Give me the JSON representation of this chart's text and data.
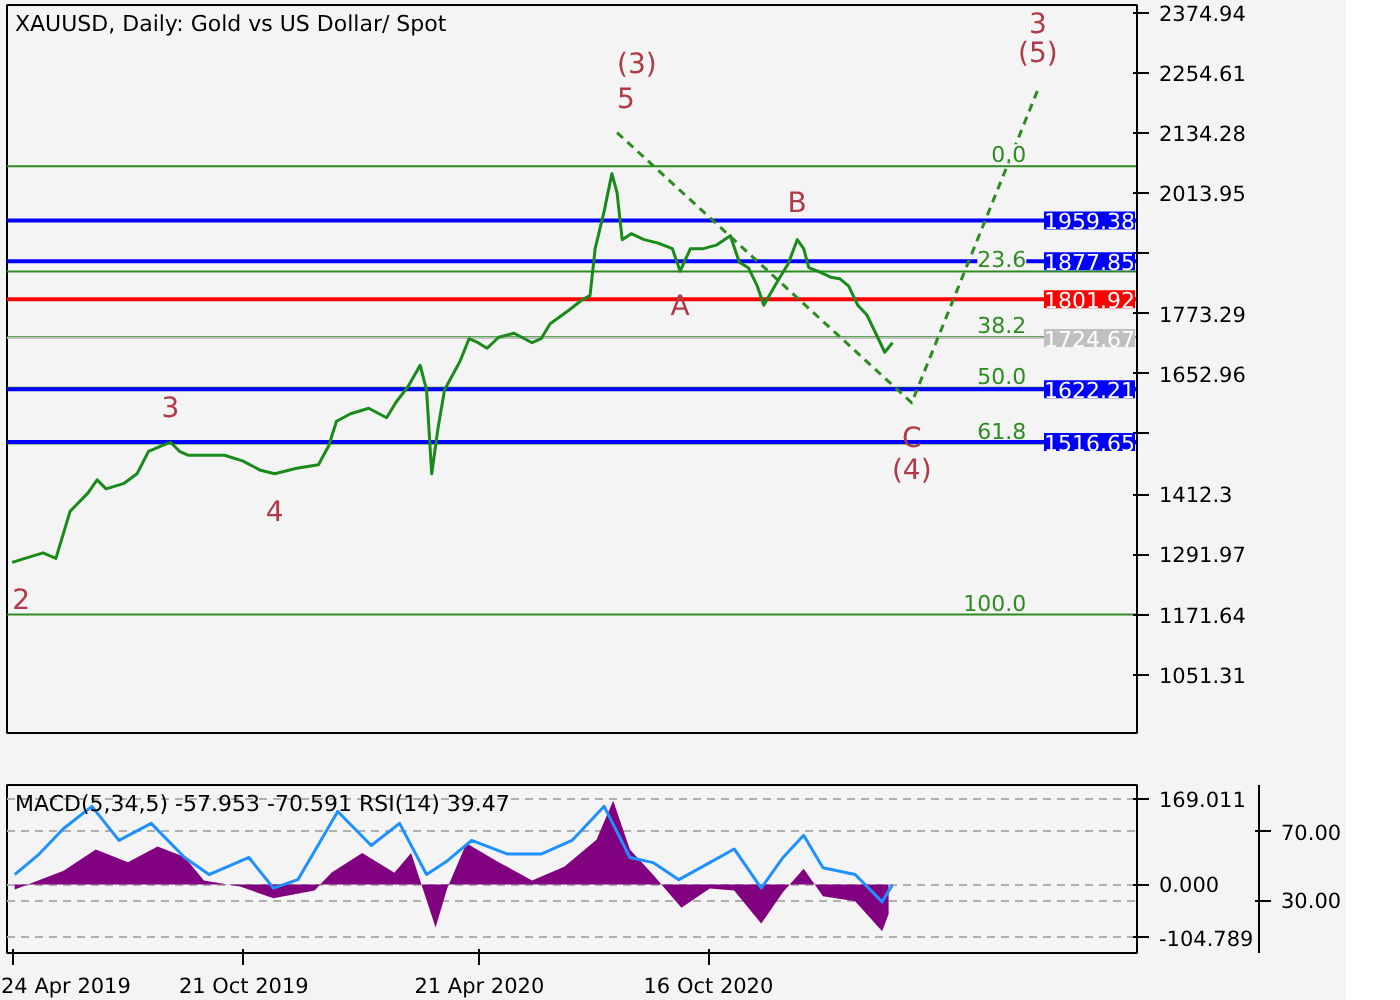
{
  "chart_data": [
    {
      "type": "line",
      "title": "XAUUSD, Daily:  Gold vs US Dollar/ Spot",
      "xlim": [
        "2019-04-20",
        "2021-09-14"
      ],
      "xticks": [
        {
          "value": "2019-04-24",
          "label": null
        },
        {
          "value": "2019-10-21",
          "label": null
        },
        {
          "value": "2020-04-21",
          "label": null
        },
        {
          "value": "2020-10-16",
          "label": null
        }
      ],
      "ylim": [
        935,
        2390
      ],
      "yticks": [
        2374.94,
        2254.61,
        2134.28,
        2013.95,
        {
          "value": 1893.62,
          "label": null
        },
        1773.29,
        1652.96,
        {
          "value": 1532.63,
          "label": null
        },
        1412.3,
        1291.97,
        1171.64,
        1051.31
      ],
      "tick_labels": "y",
      "series": [
        {
          "color": "#1a8a1a",
          "x": [
            "2019-04-24",
            "2019-05-04",
            "2019-05-18",
            "2019-05-28",
            "2019-06-08",
            "2019-06-22",
            "2019-06-29",
            "2019-07-06",
            "2019-07-20",
            "2019-07-30",
            "2019-08-08",
            "2019-08-18",
            "2019-08-25",
            "2019-09-01",
            "2019-09-08",
            "2019-09-22",
            "2019-10-06",
            "2019-10-20",
            "2019-11-03",
            "2019-11-14",
            "2019-12-01",
            "2019-12-18",
            "2019-12-26",
            "2020-01-01",
            "2020-01-12",
            "2020-01-26",
            "2020-02-09",
            "2020-02-16",
            "2020-02-26",
            "2020-03-06",
            "2020-03-11",
            "2020-03-15",
            "2020-03-20",
            "2020-03-25",
            "2020-03-29",
            "2020-04-06",
            "2020-04-13",
            "2020-04-20",
            "2020-04-27",
            "2020-05-06",
            "2020-05-18",
            "2020-06-01",
            "2020-06-08",
            "2020-06-15",
            "2020-06-29",
            "2020-07-10",
            "2020-07-16",
            "2020-07-20",
            "2020-07-27",
            "2020-08-02",
            "2020-08-06",
            "2020-08-10",
            "2020-08-17",
            "2020-08-27",
            "2020-09-07",
            "2020-09-18",
            "2020-09-24",
            "2020-10-02",
            "2020-10-12",
            "2020-10-22",
            "2020-11-02",
            "2020-11-09",
            "2020-11-16",
            "2020-11-23",
            "2020-11-28",
            "2020-12-08",
            "2020-12-17",
            "2020-12-24",
            "2020-12-29",
            "2021-01-02",
            "2021-01-09",
            "2021-01-19",
            "2021-01-26",
            "2021-02-02",
            "2021-02-09",
            "2021-02-16",
            "2021-02-23",
            "2021-03-02",
            "2021-03-08"
          ],
          "values": [
            1276,
            1284,
            1295,
            1284,
            1378,
            1415,
            1441,
            1423,
            1434,
            1453,
            1498,
            1509,
            1516,
            1498,
            1490,
            1490,
            1490,
            1479,
            1460,
            1453,
            1464,
            1471,
            1509,
            1558,
            1573,
            1584,
            1565,
            1595,
            1629,
            1670,
            1621,
            1453,
            1546,
            1621,
            1640,
            1678,
            1723,
            1715,
            1704,
            1726,
            1734,
            1715,
            1723,
            1753,
            1779,
            1801,
            1809,
            1903,
            1978,
            2053,
            2015,
            1921,
            1933,
            1921,
            1914,
            1903,
            1858,
            1903,
            1903,
            1910,
            1929,
            1876,
            1865,
            1828,
            1790,
            1835,
            1873,
            1921,
            1903,
            1865,
            1858,
            1846,
            1843,
            1828,
            1790,
            1771,
            1734,
            1696,
            1715
          ]
        },
        {
          "color": "#2e8b22",
          "line_style": "dashed",
          "x": [
            "2020-08-06",
            "2021-03-23",
            "2021-06-29"
          ],
          "values": [
            2135,
            1595,
            2221
          ]
        }
      ],
      "ref_lines": [
        {
          "axis": "y",
          "value": 2067.5,
          "label": null,
          "color": "#2e8b22"
        },
        {
          "axis": "y",
          "value": 1857.6,
          "label": null,
          "color": "#2e8b22"
        },
        {
          "axis": "y",
          "value": 1726,
          "label": null,
          "color": "#2e8b22"
        },
        {
          "axis": "y",
          "value": 1625,
          "label": null,
          "color": "#2e8b22"
        },
        {
          "axis": "y",
          "value": 1513.8,
          "label": null,
          "color": "#2e8b22"
        },
        {
          "axis": "y",
          "value": 1171.64,
          "label": null,
          "color": "#2e8b22"
        },
        {
          "axis": "y",
          "value": 1959.38,
          "label": "1959.38",
          "color": "#0000ff"
        },
        {
          "axis": "y",
          "value": 1877.85,
          "label": "1877.85",
          "color": "#0000ff"
        },
        {
          "axis": "y",
          "value": 1801.92,
          "label": "1801.92",
          "color": "#ff0000"
        },
        {
          "axis": "y",
          "value": 1724.67,
          "label": "1724.67",
          "color": "#c0c0c0"
        },
        {
          "axis": "y",
          "value": 1622.21,
          "label": "1622.21",
          "color": "#0000ff"
        },
        {
          "axis": "y",
          "value": 1516.65,
          "label": "1516.65",
          "color": "#0000ff"
        }
      ],
      "annotations": [
        {
          "text": "0.0",
          "x": "2021-06-20",
          "y": 2067.5
        },
        {
          "text": "23.6",
          "x": "2021-06-20",
          "y": 1857.6
        },
        {
          "text": "38.2",
          "x": "2021-06-20",
          "y": 1726
        },
        {
          "text": "50.0",
          "x": "2021-06-20",
          "y": 1625
        },
        {
          "text": "61.8",
          "x": "2021-06-20",
          "y": 1513.8
        },
        {
          "text": "100.0",
          "x": "2021-06-20",
          "y": 1171.64
        },
        {
          "text": "2",
          "x": "2019-04-24",
          "y": 1276
        },
        {
          "text": "3",
          "x": "2019-08-25",
          "y": 1516
        },
        {
          "text": "4",
          "x": "2019-11-14",
          "y": 1453
        },
        {
          "text": "5",
          "x": "2020-08-06",
          "y": 2135
        },
        {
          "text": "(3)",
          "x": "2020-08-06",
          "y": 2135
        },
        {
          "text": "A",
          "x": "2020-09-24",
          "y": 1858
        },
        {
          "text": "B",
          "x": "2020-12-24",
          "y": 1921
        },
        {
          "text": "C",
          "x": "2021-03-23",
          "y": 1595
        },
        {
          "text": "(4)",
          "x": "2021-03-23",
          "y": 1595
        },
        {
          "text": "(5)",
          "x": "2021-06-29",
          "y": 2221
        },
        {
          "text": "3",
          "x": "2021-06-29",
          "y": 2221
        }
      ]
    },
    {
      "type": "area",
      "title": "MACD(5,34,5) -57.953 -70.591 RSI(14) 39.47",
      "xlim": [
        "2019-04-20",
        "2021-09-14"
      ],
      "xticks": [
        {
          "value": "2019-04-24",
          "label": "24 Apr 2019"
        },
        {
          "value": "2019-10-21",
          "label": "21 Oct 2019"
        },
        {
          "value": "2020-04-21",
          "label": "21 Apr 2020"
        },
        {
          "value": "2020-10-16",
          "label": "16 Oct 2020"
        }
      ],
      "ylim": [
        -135,
        196
      ],
      "yticks": [
        169.011,
        {
          "value": 0,
          "label": "0.000"
        },
        -104.789
      ],
      "y2lim": [
        -1,
        97.5
      ],
      "y2ticks": [
        {
          "value": 70,
          "label": "70.00"
        },
        {
          "value": 30,
          "label": "30.00"
        }
      ],
      "series": [
        {
          "type": "area",
          "color": "#800080",
          "x": [
            "2019-04-26",
            "2019-06-03",
            "2019-06-28",
            "2019-07-23",
            "2019-08-15",
            "2019-09-05",
            "2019-09-20",
            "2019-10-18",
            "2019-11-13",
            "2019-12-15",
            "2019-12-28",
            "2020-01-21",
            "2020-02-15",
            "2020-02-28",
            "2020-03-18",
            "2020-03-27",
            "2020-04-11",
            "2020-05-06",
            "2020-06-01",
            "2020-06-26",
            "2020-07-21",
            "2020-08-03",
            "2020-08-16",
            "2020-09-03",
            "2020-09-25",
            "2020-10-17",
            "2020-11-05",
            "2020-11-26",
            "2020-12-13",
            "2020-12-29",
            "2021-01-13",
            "2021-02-07",
            "2021-02-28",
            "2021-03-05"
          ],
          "values": [
            -10,
            27,
            69,
            44,
            75,
            54,
            8,
            -4,
            -27,
            -12,
            23,
            62,
            23,
            62,
            -85,
            -8,
            81,
            44,
            8,
            35,
            88,
            165,
            69,
            19,
            -46,
            -8,
            -12,
            -77,
            -15,
            31,
            -23,
            -33,
            -92,
            -58
          ]
        },
        {
          "type": "line",
          "axis": "y2",
          "color": "#1e90ff",
          "x": [
            "2019-04-26",
            "2019-05-15",
            "2019-06-03",
            "2019-06-25",
            "2019-07-16",
            "2019-08-10",
            "2019-09-05",
            "2019-09-24",
            "2019-10-25",
            "2019-11-13",
            "2019-12-02",
            "2020-01-02",
            "2020-01-28",
            "2020-02-19",
            "2020-03-11",
            "2020-03-27",
            "2020-04-15",
            "2020-05-13",
            "2020-06-08",
            "2020-07-02",
            "2020-07-27",
            "2020-08-16",
            "2020-09-03",
            "2020-09-23",
            "2020-10-17",
            "2020-11-05",
            "2020-11-26",
            "2020-12-13",
            "2020-12-29",
            "2021-01-13",
            "2021-02-07",
            "2021-02-28",
            "2021-03-08"
          ],
          "values": [
            45,
            57,
            72,
            85,
            65,
            75,
            55,
            45,
            55,
            37,
            42,
            82,
            62,
            75,
            45,
            53,
            65,
            57,
            57,
            65,
            85,
            55,
            52,
            42,
            52,
            60,
            37,
            55,
            68,
            49,
            45,
            29,
            39
          ]
        }
      ],
      "grid": "y"
    }
  ]
}
